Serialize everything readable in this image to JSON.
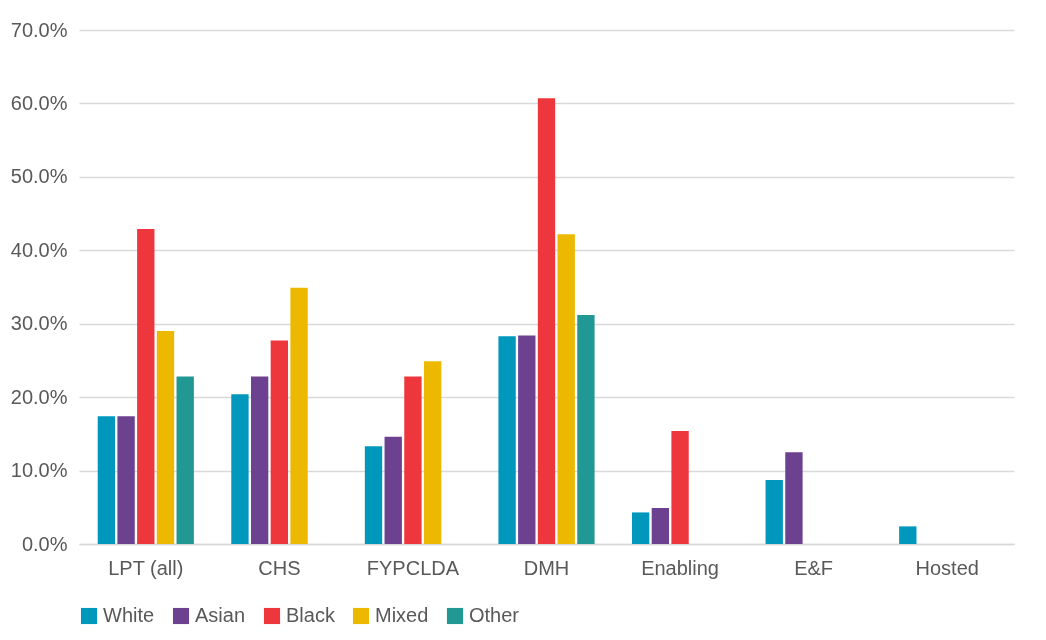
{
  "chart_data": {
    "type": "bar",
    "categories": [
      "LPT (all)",
      "CHS",
      "FYPCLDA",
      "DMH",
      "Enabling",
      "E&F",
      "Hosted"
    ],
    "series": [
      {
        "name": "White",
        "color": "#0097bd",
        "values": [
          17.4,
          20.4,
          13.3,
          28.3,
          4.3,
          8.7,
          2.4
        ]
      },
      {
        "name": "Asian",
        "color": "#6b4190",
        "values": [
          17.4,
          22.8,
          14.6,
          28.4,
          4.9,
          12.5,
          null
        ]
      },
      {
        "name": "Black",
        "color": "#ee363d",
        "values": [
          42.9,
          27.7,
          22.8,
          60.7,
          15.4,
          null,
          null
        ]
      },
      {
        "name": "Mixed",
        "color": "#ecb800",
        "values": [
          29.0,
          34.9,
          24.9,
          42.2,
          null,
          null,
          null
        ]
      },
      {
        "name": "Other",
        "color": "#229894",
        "values": [
          22.8,
          null,
          null,
          31.2,
          null,
          null,
          null
        ]
      }
    ],
    "ylim": [
      0,
      70
    ],
    "yticks": [
      {
        "value": 0,
        "label": "0.0%"
      },
      {
        "value": 10,
        "label": "10.0%"
      },
      {
        "value": 20,
        "label": "20.0%"
      },
      {
        "value": 30,
        "label": "30.0%"
      },
      {
        "value": 40,
        "label": "40.0%"
      },
      {
        "value": 50,
        "label": "50.0%"
      },
      {
        "value": 60,
        "label": "60.0%"
      },
      {
        "value": 70,
        "label": "70.0%"
      }
    ],
    "grid": true,
    "legend": "bottom"
  }
}
